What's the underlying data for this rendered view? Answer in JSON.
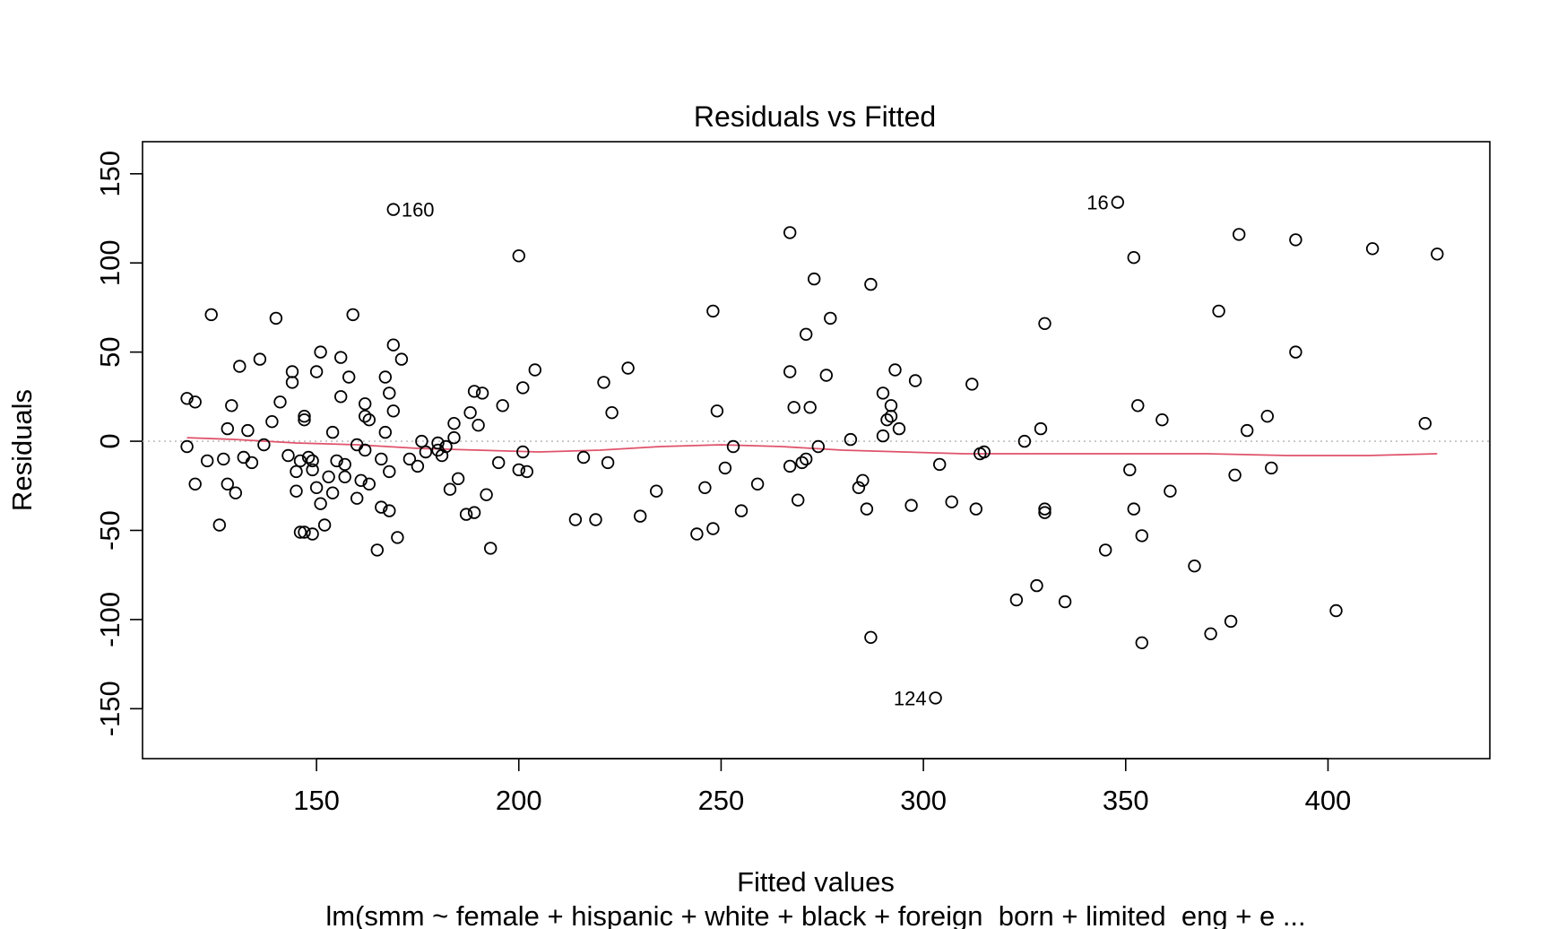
{
  "chart_data": {
    "type": "scatter",
    "title": "Residuals vs Fitted",
    "xlabel": "Fitted values",
    "ylabel": "Residuals",
    "subtitle": "lm(smm ~ female + hispanic + white + black + foreign_born + limited_eng + e ...",
    "xlim": [
      107,
      440
    ],
    "ylim": [
      -178,
      168
    ],
    "x_ticks": [
      150,
      200,
      250,
      300,
      350,
      400
    ],
    "y_ticks": [
      -150,
      -100,
      -50,
      0,
      50,
      100,
      150
    ],
    "reference_line": {
      "y": 0,
      "style": "dotted",
      "color": "#bebebe"
    },
    "point_color": "#000000",
    "smooth_color": "#df536b",
    "labeled_points": [
      {
        "label": "160",
        "x": 169,
        "y": 130,
        "side": "right"
      },
      {
        "label": "16",
        "x": 348,
        "y": 134,
        "side": "left"
      },
      {
        "label": "124",
        "x": 303,
        "y": -144,
        "side": "left"
      }
    ],
    "series": [
      {
        "values": [
          [
            118,
            -3
          ],
          [
            118,
            24
          ],
          [
            120,
            -24
          ],
          [
            120,
            22
          ],
          [
            123,
            -11
          ],
          [
            124,
            71
          ],
          [
            126,
            -47
          ],
          [
            127,
            -10
          ],
          [
            128,
            -24
          ],
          [
            128,
            7
          ],
          [
            129,
            20
          ],
          [
            130,
            -29
          ],
          [
            131,
            42
          ],
          [
            132,
            -9
          ],
          [
            133,
            6
          ],
          [
            134,
            -12
          ],
          [
            136,
            46
          ],
          [
            137,
            -2
          ],
          [
            139,
            11
          ],
          [
            140,
            69
          ],
          [
            141,
            22
          ],
          [
            143,
            -8
          ],
          [
            144,
            33
          ],
          [
            144,
            39
          ],
          [
            145,
            -28
          ],
          [
            145,
            -17
          ],
          [
            146,
            -11
          ],
          [
            146,
            -51
          ],
          [
            147,
            12
          ],
          [
            147,
            14
          ],
          [
            147,
            -51
          ],
          [
            148,
            -9
          ],
          [
            149,
            -16
          ],
          [
            149,
            -11
          ],
          [
            149,
            -52
          ],
          [
            150,
            39
          ],
          [
            150,
            -26
          ],
          [
            151,
            50
          ],
          [
            151,
            -35
          ],
          [
            152,
            -47
          ],
          [
            153,
            -20
          ],
          [
            154,
            5
          ],
          [
            154,
            -29
          ],
          [
            155,
            -11
          ],
          [
            156,
            47
          ],
          [
            156,
            25
          ],
          [
            157,
            -13
          ],
          [
            157,
            -20
          ],
          [
            158,
            36
          ],
          [
            159,
            71
          ],
          [
            160,
            -32
          ],
          [
            160,
            -2
          ],
          [
            161,
            -22
          ],
          [
            162,
            -5
          ],
          [
            162,
            14
          ],
          [
            162,
            21
          ],
          [
            163,
            12
          ],
          [
            163,
            -24
          ],
          [
            165,
            -61
          ],
          [
            166,
            -10
          ],
          [
            166,
            -37
          ],
          [
            167,
            5
          ],
          [
            167,
            36
          ],
          [
            168,
            -17
          ],
          [
            168,
            -39
          ],
          [
            168,
            27
          ],
          [
            169,
            17
          ],
          [
            169,
            54
          ],
          [
            170,
            -54
          ],
          [
            171,
            46
          ],
          [
            173,
            -10
          ],
          [
            175,
            -14
          ],
          [
            176,
            0
          ],
          [
            177,
            -6
          ],
          [
            180,
            -5
          ],
          [
            180,
            -1
          ],
          [
            181,
            -8
          ],
          [
            182,
            -3
          ],
          [
            183,
            -27
          ],
          [
            184,
            2
          ],
          [
            184,
            10
          ],
          [
            185,
            -21
          ],
          [
            187,
            -41
          ],
          [
            188,
            16
          ],
          [
            189,
            28
          ],
          [
            189,
            -40
          ],
          [
            190,
            9
          ],
          [
            191,
            27
          ],
          [
            192,
            -30
          ],
          [
            193,
            -60
          ],
          [
            195,
            -12
          ],
          [
            196,
            20
          ],
          [
            200,
            104
          ],
          [
            200,
            -16
          ],
          [
            201,
            -6
          ],
          [
            201,
            30
          ],
          [
            202,
            -17
          ],
          [
            204,
            40
          ],
          [
            214,
            -44
          ],
          [
            216,
            -9
          ],
          [
            219,
            -44
          ],
          [
            221,
            33
          ],
          [
            222,
            -12
          ],
          [
            223,
            16
          ],
          [
            227,
            41
          ],
          [
            230,
            -42
          ],
          [
            234,
            -28
          ],
          [
            244,
            -52
          ],
          [
            246,
            -26
          ],
          [
            248,
            73
          ],
          [
            248,
            -49
          ],
          [
            249,
            17
          ],
          [
            251,
            -15
          ],
          [
            253,
            -3
          ],
          [
            255,
            -39
          ],
          [
            259,
            -24
          ],
          [
            267,
            117
          ],
          [
            267,
            39
          ],
          [
            267,
            -14
          ],
          [
            268,
            19
          ],
          [
            269,
            -33
          ],
          [
            270,
            -12
          ],
          [
            271,
            60
          ],
          [
            271,
            -10
          ],
          [
            272,
            19
          ],
          [
            273,
            91
          ],
          [
            274,
            -3
          ],
          [
            276,
            37
          ],
          [
            277,
            69
          ],
          [
            282,
            1
          ],
          [
            284,
            -26
          ],
          [
            285,
            -22
          ],
          [
            286,
            -38
          ],
          [
            287,
            88
          ],
          [
            287,
            -110
          ],
          [
            290,
            27
          ],
          [
            290,
            3
          ],
          [
            291,
            12
          ],
          [
            292,
            14
          ],
          [
            292,
            20
          ],
          [
            293,
            40
          ],
          [
            294,
            7
          ],
          [
            297,
            -36
          ],
          [
            298,
            34
          ],
          [
            304,
            -13
          ],
          [
            307,
            -34
          ],
          [
            312,
            32
          ],
          [
            313,
            -38
          ],
          [
            314,
            -7
          ],
          [
            315,
            -6
          ],
          [
            323,
            -89
          ],
          [
            325,
            0
          ],
          [
            328,
            -81
          ],
          [
            329,
            7
          ],
          [
            330,
            66
          ],
          [
            330,
            -38
          ],
          [
            330,
            -40
          ],
          [
            335,
            -90
          ],
          [
            345,
            -61
          ],
          [
            351,
            -16
          ],
          [
            352,
            103
          ],
          [
            352,
            -38
          ],
          [
            353,
            20
          ],
          [
            354,
            -53
          ],
          [
            354,
            -113
          ],
          [
            359,
            12
          ],
          [
            361,
            -28
          ],
          [
            367,
            -70
          ],
          [
            371,
            -108
          ],
          [
            373,
            73
          ],
          [
            376,
            -101
          ],
          [
            377,
            -19
          ],
          [
            378,
            116
          ],
          [
            380,
            6
          ],
          [
            385,
            14
          ],
          [
            386,
            -15
          ],
          [
            392,
            50
          ],
          [
            392,
            113
          ],
          [
            402,
            -95
          ],
          [
            411,
            108
          ],
          [
            424,
            10
          ],
          [
            427,
            105
          ]
        ]
      }
    ],
    "smooth_line": [
      [
        118,
        2
      ],
      [
        130,
        1
      ],
      [
        145,
        -1
      ],
      [
        160,
        -2
      ],
      [
        175,
        -4
      ],
      [
        190,
        -5
      ],
      [
        205,
        -6
      ],
      [
        220,
        -5
      ],
      [
        235,
        -3
      ],
      [
        250,
        -2
      ],
      [
        265,
        -3
      ],
      [
        280,
        -5
      ],
      [
        295,
        -6
      ],
      [
        310,
        -7
      ],
      [
        330,
        -7
      ],
      [
        350,
        -7
      ],
      [
        370,
        -7
      ],
      [
        390,
        -8
      ],
      [
        410,
        -8
      ],
      [
        427,
        -7
      ]
    ]
  }
}
